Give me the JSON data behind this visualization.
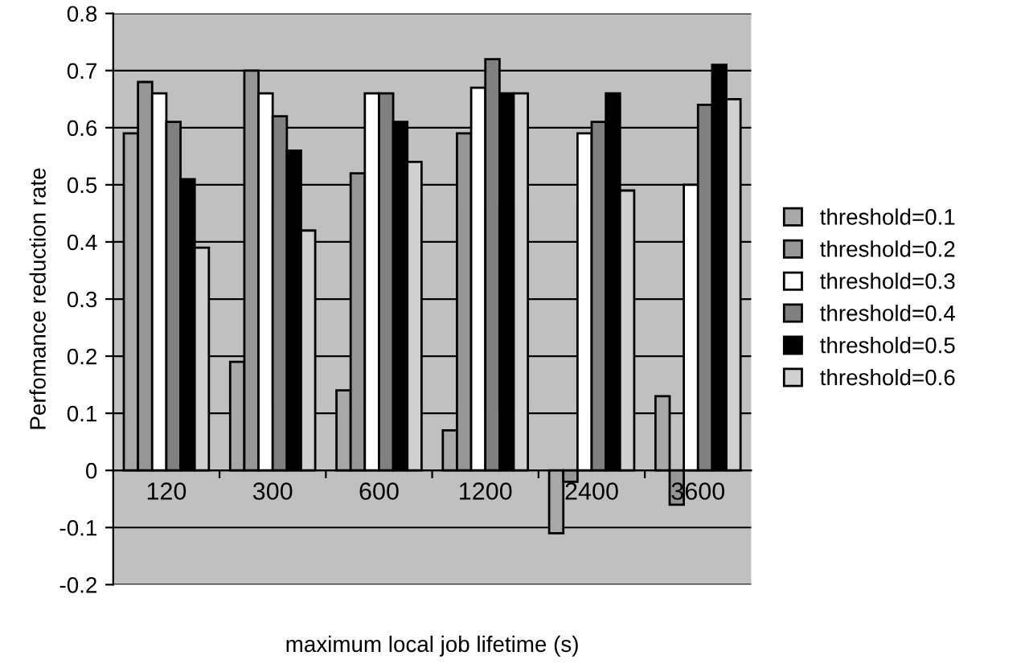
{
  "chart_data": {
    "type": "bar",
    "xlabel": "maximum local job lifetime (s)",
    "ylabel": "Perfomance reduction rate",
    "categories": [
      "120",
      "300",
      "600",
      "1200",
      "2400",
      "3600"
    ],
    "series": [
      {
        "name": "threshold=0.1",
        "color": "#a8a8a8",
        "values": [
          0.59,
          0.19,
          0.14,
          0.07,
          -0.11,
          0.13
        ]
      },
      {
        "name": "threshold=0.2",
        "color": "#969696",
        "values": [
          0.68,
          0.7,
          0.52,
          0.59,
          -0.02,
          -0.06
        ]
      },
      {
        "name": "threshold=0.3",
        "color": "#ffffff",
        "values": [
          0.66,
          0.66,
          0.66,
          0.67,
          0.59,
          0.5
        ]
      },
      {
        "name": "threshold=0.4",
        "color": "#808080",
        "values": [
          0.61,
          0.62,
          0.66,
          0.72,
          0.61,
          0.64
        ]
      },
      {
        "name": "threshold=0.5",
        "color": "#000000",
        "values": [
          0.51,
          0.56,
          0.61,
          0.66,
          0.66,
          0.71
        ]
      },
      {
        "name": "threshold=0.6",
        "color": "#d0d0d0",
        "values": [
          0.39,
          0.42,
          0.54,
          0.66,
          0.49,
          0.65
        ]
      }
    ],
    "ylim": [
      -0.2,
      0.8
    ],
    "yticks": [
      -0.2,
      -0.1,
      0,
      0.1,
      0.2,
      0.3,
      0.4,
      0.5,
      0.6,
      0.7,
      0.8
    ],
    "grid": "y",
    "legend": "right"
  }
}
